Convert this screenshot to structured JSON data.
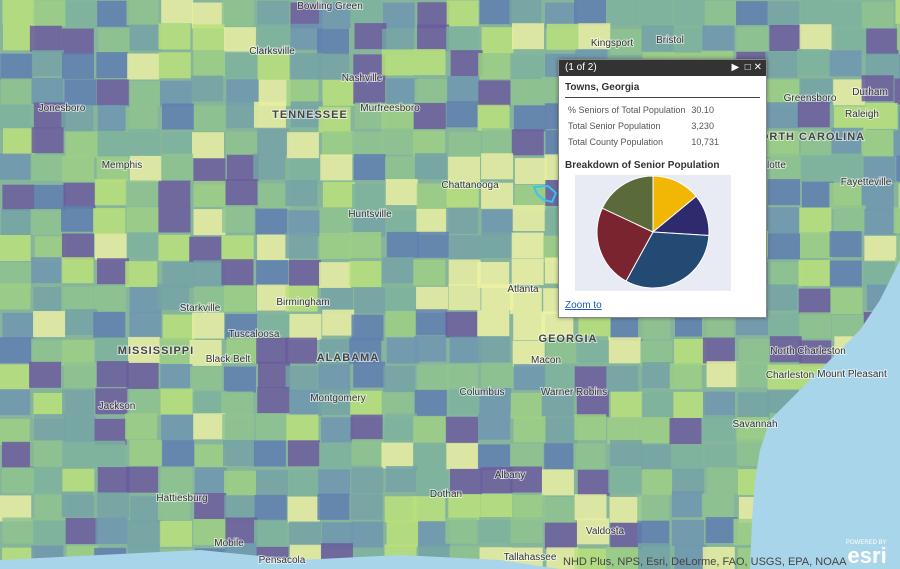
{
  "map": {
    "labels": [
      "Bowling Green",
      "Clarksville",
      "Nashville",
      "Murfreesboro",
      "TENNESSEE",
      "Jonesboro",
      "Memphis",
      "Huntsville",
      "Chattanooga",
      "Kingsport",
      "Bristol",
      "Greensboro",
      "Durham",
      "Raleigh",
      "NORTH CAROLINA",
      "arlotte",
      "Fayetteville",
      "Birmingham",
      "Atlanta",
      "GEORGIA",
      "ALABAMA",
      "MISSISSIPPI",
      "Starkville",
      "Tuscaloosa",
      "Black Belt",
      "Montgomery",
      "Jackson",
      "Columbus",
      "Macon",
      "Albany",
      "Dothan",
      "Hattiesburg",
      "Mobile",
      "Pensacola",
      "Tallahassee",
      "Valdosta",
      "Savannah",
      "North Charleston",
      "Charleston",
      "Mount Pleasant",
      "Warner Robins"
    ],
    "attribution": "NHD Plus, NPS, Esri, DeLorme, FAO, USGS, EPA, NOAA",
    "logo": {
      "caption": "POWERED BY",
      "brand": "esri"
    }
  },
  "popup": {
    "counter": "(1 of 2)",
    "title": "Towns, Georgia",
    "rows": [
      [
        "% Seniors of Total Population",
        "30.10"
      ],
      [
        "Total Senior Population",
        "3,230"
      ],
      [
        "Total County Population",
        "10,731"
      ]
    ],
    "chart": {
      "type": "pie",
      "title": "Breakdown of Senior Population",
      "values": [
        14,
        12,
        32,
        24,
        18
      ],
      "colors": [
        "#f2b705",
        "#2e2a6e",
        "#234a73",
        "#7a2430",
        "#5a6a3a"
      ]
    },
    "link": "Zoom to"
  }
}
